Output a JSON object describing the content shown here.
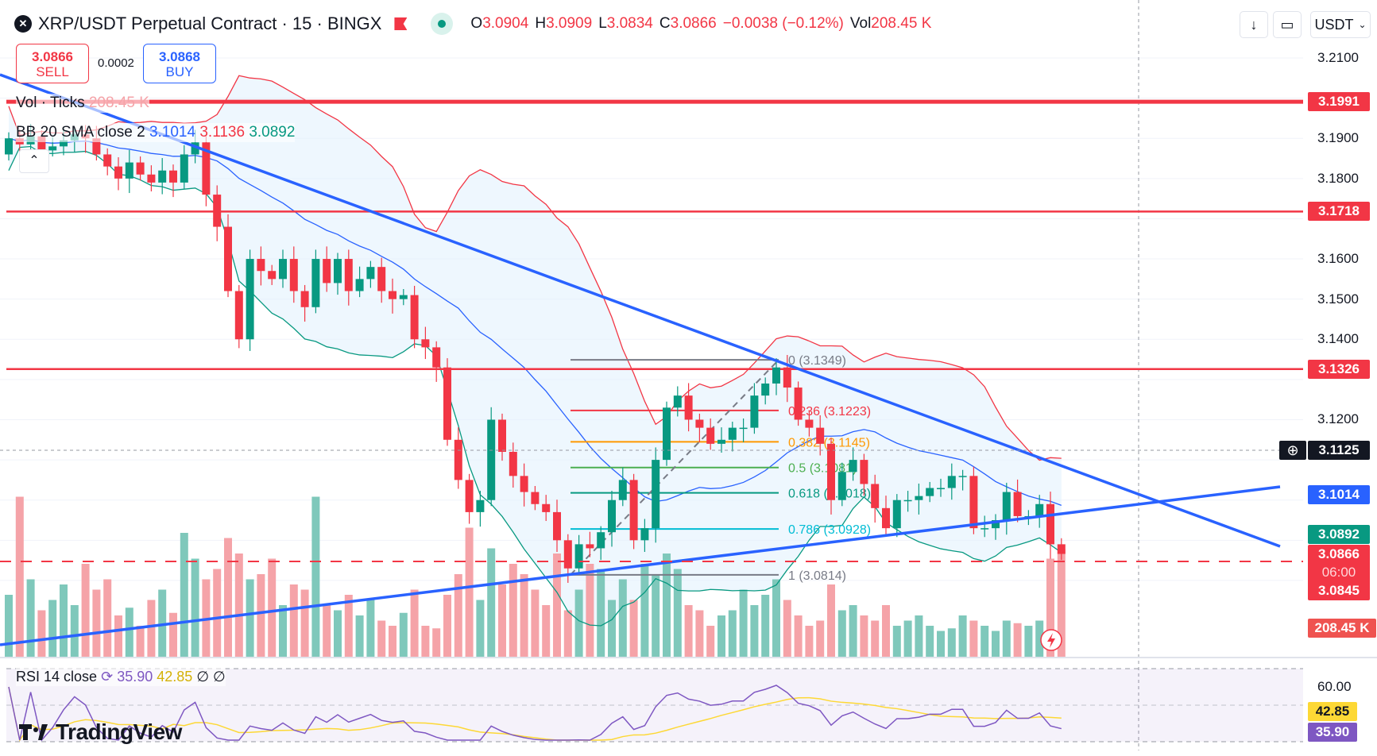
{
  "header": {
    "title": "XRP/USDT Perpetual Contract · 15 · BINGX",
    "o_label": "O",
    "o": "3.0904",
    "h_label": "H",
    "h": "3.0909",
    "l_label": "L",
    "l": "3.0834",
    "c_label": "C",
    "c": "3.0866",
    "change": "−0.0038 (−0.12%)",
    "vol_label": "Vol",
    "vol": "208.45 K"
  },
  "trade": {
    "sell_price": "3.0866",
    "sell_label": "SELL",
    "spread": "0.0002",
    "buy_price": "3.0868",
    "buy_label": "BUY"
  },
  "legend": {
    "vol": "Vol · Ticks",
    "vol_value": "208.45 K",
    "bb": "BB 20 SMA close 2",
    "bb_basis": "3.1014",
    "bb_upper": "3.1136",
    "bb_lower": "3.0892",
    "rsi": "RSI 14 close",
    "rsi_value": "35.90",
    "rsi_ma": "42.85",
    "rsi_extra1": "∅",
    "rsi_extra2": "∅"
  },
  "toolbar": {
    "currency": "USDT",
    "download_icon": "↓",
    "fullscreen_icon": "▭"
  },
  "price_axis": {
    "ticks": [
      "3.2100",
      "3.1900",
      "3.1800",
      "3.1600",
      "3.1500",
      "3.1400",
      "3.1200"
    ],
    "tick_values": [
      3.21,
      3.19,
      3.18,
      3.16,
      3.15,
      3.14,
      3.12
    ]
  },
  "levels": [
    {
      "price": "3.1991",
      "value": 3.1991
    },
    {
      "price": "3.1718",
      "value": 3.1718
    },
    {
      "price": "3.1326",
      "value": 3.1326
    }
  ],
  "labels": {
    "crosshair": "3.1125",
    "bb_basis": "3.1014",
    "bb_lower": "3.0892",
    "last": "3.0866",
    "countdown": "06:00",
    "low": "3.0845",
    "volume": "208.45 K",
    "rsi_tick": "60.00",
    "rsi_ma": "42.85",
    "rsi": "35.90"
  },
  "fib": [
    {
      "text": "0 (3.1349)",
      "value": 3.1349,
      "color": "#787b86"
    },
    {
      "text": "0.236 (3.1223)",
      "value": 3.1223,
      "color": "#f23645"
    },
    {
      "text": "0.382 (3.1145)",
      "value": 3.1145,
      "color": "#ff9800"
    },
    {
      "text": "0.5 (3.1081)",
      "value": 3.1081,
      "color": "#4caf50"
    },
    {
      "text": "0.618 (3.1018)",
      "value": 3.1018,
      "color": "#089981"
    },
    {
      "text": "0.786 (3.0928)",
      "value": 3.0928,
      "color": "#00bcd4"
    },
    {
      "text": "1 (3.0814)",
      "value": 3.0814,
      "color": "#787b86"
    }
  ],
  "branding": "TradingView",
  "chart_data": {
    "type": "candlestick",
    "first_open": 3.186,
    "closes": [
      3.19,
      3.1885,
      3.1905,
      3.187,
      3.188,
      3.1895,
      3.191,
      3.19,
      3.186,
      3.183,
      3.18,
      3.184,
      3.181,
      3.179,
      3.182,
      3.179,
      3.186,
      3.189,
      3.176,
      3.168,
      3.152,
      3.14,
      3.16,
      3.157,
      3.155,
      3.16,
      3.152,
      3.148,
      3.16,
      3.154,
      3.16,
      3.152,
      3.155,
      3.158,
      3.152,
      3.15,
      3.151,
      3.14,
      3.138,
      3.133,
      3.115,
      3.105,
      3.097,
      3.1,
      3.12,
      3.112,
      3.106,
      3.102,
      3.099,
      3.097,
      3.09,
      3.083,
      3.089,
      3.088,
      3.092,
      3.1,
      3.105,
      3.09,
      3.093,
      3.11,
      3.123,
      3.126,
      3.12,
      3.118,
      3.114,
      3.115,
      3.118,
      3.118,
      3.126,
      3.129,
      3.133,
      3.128,
      3.12,
      3.118,
      3.114,
      3.1,
      3.107,
      3.11,
      3.104,
      3.098,
      3.093,
      3.1,
      3.1,
      3.101,
      3.103,
      3.103,
      3.106,
      3.106,
      3.093,
      3.093,
      3.095,
      3.102,
      3.096,
      3.096,
      3.099,
      3.089,
      3.0866
    ],
    "volumes_k": [
      120,
      310,
      150,
      90,
      110,
      140,
      100,
      180,
      130,
      150,
      80,
      95,
      60,
      110,
      130,
      85,
      240,
      190,
      150,
      170,
      230,
      200,
      150,
      160,
      190,
      100,
      140,
      130,
      310,
      100,
      90,
      120,
      80,
      110,
      70,
      60,
      85,
      130,
      60,
      55,
      120,
      160,
      250,
      110,
      210,
      140,
      180,
      160,
      130,
      100,
      200,
      90,
      130,
      180,
      170,
      110,
      150,
      110,
      180,
      160,
      200,
      170,
      100,
      90,
      60,
      80,
      90,
      130,
      100,
      120,
      150,
      110,
      80,
      60,
      70,
      140,
      90,
      100,
      80,
      70,
      100,
      60,
      70,
      80,
      60,
      50,
      55,
      80,
      70,
      60,
      50,
      70,
      65,
      60,
      70,
      190,
      208.45
    ],
    "colors": {
      "up": "#089981",
      "down": "#f23645",
      "up_vol": "#7fc8bb",
      "down_vol": "#f5a3a8",
      "bb_basis": "#2962ff",
      "bb_upper": "#f23645",
      "bb_lower": "#089981",
      "rsi": "#7e57c2",
      "rsi_ma": "#fdd835"
    }
  }
}
